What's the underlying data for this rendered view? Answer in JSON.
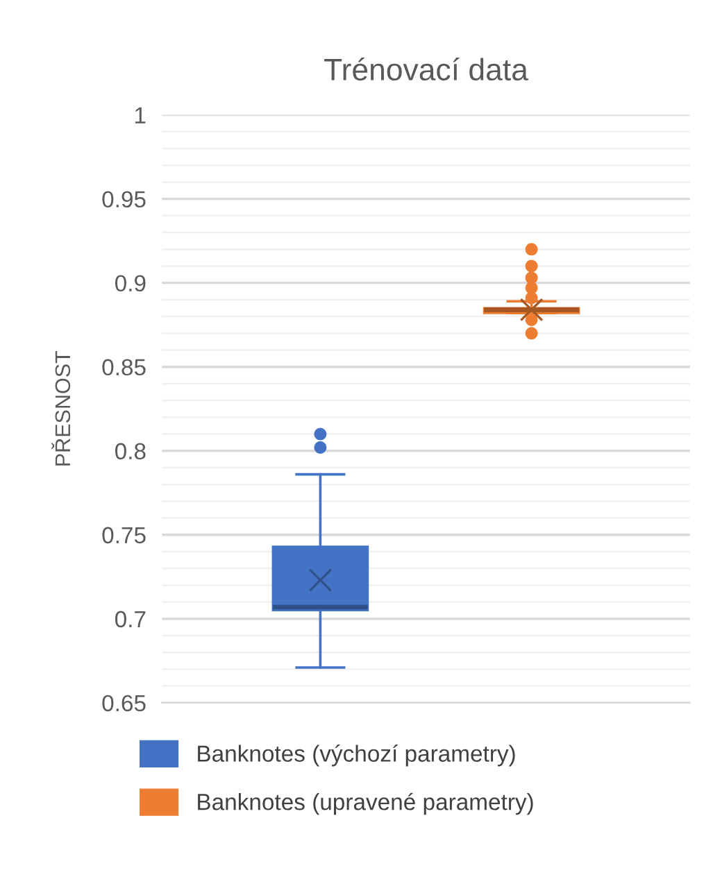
{
  "chart_data": {
    "type": "box",
    "title": "Trénovací data",
    "ylabel": "PŘESNOST",
    "categories": [
      null
    ],
    "series": [
      {
        "name": "Banknotes (výchozí parametry)",
        "color": "#4472c4",
        "boxes": [
          {
            "low": 0.671,
            "q1": 0.705,
            "median": 0.707,
            "q3": 0.743,
            "high": 0.786,
            "mean": 0.723,
            "outliers": [
              0.802,
              0.81
            ]
          }
        ]
      },
      {
        "name": "Banknotes (upravené parametry)",
        "color": "#ed7d31",
        "boxes": [
          {
            "low": 0.882,
            "q1": 0.882,
            "median": 0.884,
            "q3": 0.885,
            "high": 0.889,
            "mean": 0.884,
            "outliers": [
              0.87,
              0.878,
              0.891,
              0.897,
              0.903,
              0.91,
              0.92
            ]
          }
        ]
      }
    ],
    "ylim": [
      0.65,
      1
    ],
    "yticks": [
      0.65,
      {
        "value": 0.66,
        "label": null
      },
      {
        "value": 0.67,
        "label": null
      },
      {
        "value": 0.68,
        "label": null
      },
      {
        "value": 0.69,
        "label": null
      },
      0.7,
      {
        "value": 0.71,
        "label": null
      },
      {
        "value": 0.72,
        "label": null
      },
      {
        "value": 0.73,
        "label": null
      },
      {
        "value": 0.74,
        "label": null
      },
      0.75,
      {
        "value": 0.76,
        "label": null
      },
      {
        "value": 0.77,
        "label": null
      },
      {
        "value": 0.78,
        "label": null
      },
      {
        "value": 0.79,
        "label": null
      },
      0.8,
      {
        "value": 0.81,
        "label": null
      },
      {
        "value": 0.82,
        "label": null
      },
      {
        "value": 0.83,
        "label": null
      },
      {
        "value": 0.84,
        "label": null
      },
      0.85,
      {
        "value": 0.86,
        "label": null
      },
      {
        "value": 0.87,
        "label": null
      },
      {
        "value": 0.88,
        "label": null
      },
      {
        "value": 0.89,
        "label": null
      },
      0.9,
      {
        "value": 0.91,
        "label": null
      },
      {
        "value": 0.92,
        "label": null
      },
      {
        "value": 0.93,
        "label": null
      },
      {
        "value": 0.94,
        "label": null
      },
      0.95,
      {
        "value": 0.96,
        "label": null
      },
      {
        "value": 0.97,
        "label": null
      },
      {
        "value": 0.98,
        "label": null
      },
      {
        "value": 0.99,
        "label": null
      },
      1
    ],
    "grid": "y",
    "legend": "bottom"
  }
}
